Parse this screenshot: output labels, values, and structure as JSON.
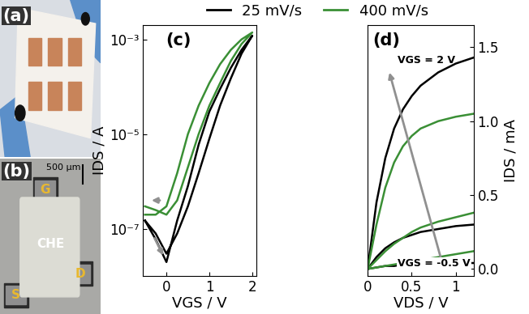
{
  "panels": {
    "a": {
      "label": "(a)"
    },
    "b": {
      "label": "(b)",
      "gate": "G",
      "source": "S",
      "drain": "D",
      "electrolyte": "CHE",
      "scale_bar": "500 µm"
    }
  },
  "chart_data": [
    {
      "type": "line",
      "panel": "(c)",
      "xlabel": "VGS / V",
      "ylabel": "IDS / A",
      "log": "y",
      "legend": "upper center",
      "xlim": [
        -0.55,
        2.1
      ],
      "xticks": [
        0,
        1,
        2
      ],
      "ylim": [
        1e-08,
        0.002
      ],
      "yticks": [
        {
          "value": 1e-07,
          "label": "10⁻⁷"
        },
        {
          "value": 1e-05,
          "label": "10⁻⁵"
        },
        {
          "value": 0.001,
          "label": "10⁻³"
        }
      ],
      "x": [
        -0.5,
        -0.25,
        0,
        0.25,
        0.5,
        0.75,
        1,
        1.25,
        1.5,
        1.75,
        2,
        1.75,
        1.5,
        1.25,
        1,
        0.75,
        0.5,
        0.25,
        0,
        -0.25,
        -0.5
      ],
      "series": [
        {
          "name": "25 mV/s",
          "color": "#000000",
          "values": [
            1.5e-07,
            8e-08,
            3e-08,
            8e-08,
            3e-07,
            1.5e-06,
            8e-06,
            4e-05,
            0.00015,
            0.0005,
            0.0012,
            0.0006,
            0.00025,
            9e-05,
            3e-05,
            6e-06,
            8e-07,
            1.5e-07,
            2e-08,
            6e-08,
            1.5e-07
          ]
        },
        {
          "name": "400 mV/s",
          "color": "#3a8f35",
          "values": [
            3e-07,
            2.5e-07,
            2e-07,
            4e-07,
            2e-06,
            1e-05,
            4e-05,
            0.00012,
            0.00035,
            0.0008,
            0.0014,
            0.001,
            0.0006,
            0.0003,
            0.00012,
            4e-05,
            1e-05,
            1.5e-06,
            3e-07,
            2e-07,
            2e-07
          ]
        }
      ]
    },
    {
      "type": "line",
      "panel": "(d)",
      "xlabel": "VDS / V",
      "ylabel": "IDS / mA",
      "xlim": [
        0,
        1.2
      ],
      "xticks": [
        0,
        0.5,
        1
      ],
      "ylim": [
        -0.05,
        1.65
      ],
      "yticks": [
        0.0,
        0.5,
        1.0,
        1.5
      ],
      "annotations": [
        "VGS = 2 V",
        "VGS = -0.5 V"
      ],
      "x": [
        0,
        0.1,
        0.2,
        0.3,
        0.4,
        0.5,
        0.6,
        0.8,
        1.0,
        1.2
      ],
      "series": [
        {
          "name": "25 mV/s",
          "color": "#000000",
          "values": [
            0,
            0.45,
            0.75,
            0.95,
            1.08,
            1.17,
            1.24,
            1.33,
            1.39,
            1.43
          ]
        },
        {
          "name": "25 mV/s",
          "color": "#000000",
          "values": [
            0,
            0.08,
            0.14,
            0.18,
            0.21,
            0.23,
            0.25,
            0.27,
            0.29,
            0.3
          ]
        },
        {
          "name": "25 mV/s",
          "color": "#000000",
          "values": [
            0,
            0.01,
            0.02,
            0.02,
            0.03,
            0.03,
            0.03,
            0.03,
            0.04,
            0.04
          ]
        },
        {
          "name": "400 mV/s",
          "color": "#3a8f35",
          "values": [
            0,
            0.3,
            0.55,
            0.72,
            0.83,
            0.9,
            0.95,
            1.0,
            1.03,
            1.05
          ]
        },
        {
          "name": "400 mV/s",
          "color": "#3a8f35",
          "values": [
            0,
            0.06,
            0.12,
            0.17,
            0.21,
            0.25,
            0.28,
            0.32,
            0.35,
            0.38
          ]
        },
        {
          "name": "400 mV/s",
          "color": "#3a8f35",
          "values": [
            0,
            0.01,
            0.02,
            0.03,
            0.04,
            0.05,
            0.06,
            0.08,
            0.1,
            0.12
          ]
        }
      ]
    }
  ]
}
